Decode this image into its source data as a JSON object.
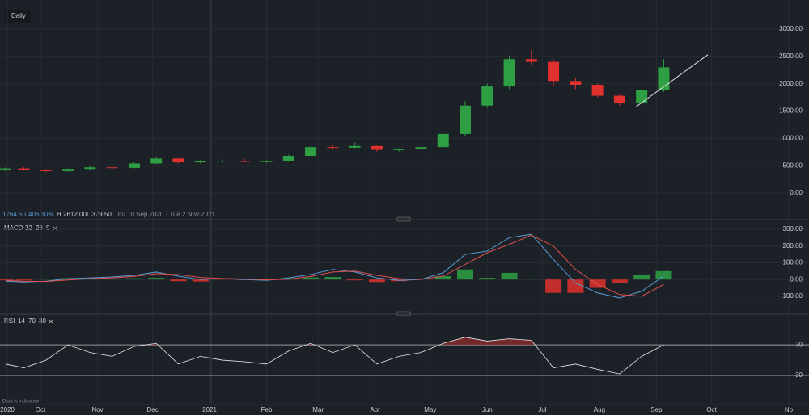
{
  "header": {
    "interval": "Daily"
  },
  "info": {
    "last": "1764.50",
    "change": "406.10%",
    "high": "H 2612.00",
    "low": "L 379.50",
    "range": "Thu 10 Sep 2020 - Tue 2 Nov 2021"
  },
  "disclaimer": "Data is indicative",
  "chart_data": [
    {
      "type": "candlestick",
      "x": [
        2,
        12,
        24,
        36,
        48,
        60,
        72,
        84,
        96,
        108,
        120,
        132,
        144,
        156,
        168,
        180,
        192,
        204,
        216,
        228,
        240,
        252,
        264,
        276,
        288,
        300,
        312,
        324,
        336,
        348,
        360
      ],
      "open": [
        430,
        450,
        420,
        400,
        440,
        470,
        460,
        540,
        630,
        560,
        580,
        590,
        570,
        580,
        680,
        840,
        830,
        860,
        790,
        800,
        840,
        1080,
        1600,
        1950,
        2450,
        2400,
        2050,
        1980,
        1780,
        1640,
        1880
      ],
      "high": [
        470,
        470,
        440,
        450,
        490,
        500,
        560,
        650,
        640,
        600,
        610,
        620,
        600,
        700,
        860,
        880,
        920,
        870,
        820,
        860,
        1100,
        1680,
        2000,
        2520,
        2612,
        2450,
        2100,
        2000,
        1800,
        1900,
        2450
      ],
      "low": [
        400,
        410,
        380,
        390,
        430,
        440,
        450,
        530,
        540,
        540,
        550,
        560,
        550,
        570,
        670,
        800,
        820,
        760,
        760,
        780,
        830,
        1050,
        1560,
        1900,
        2350,
        1950,
        1900,
        1750,
        1600,
        1620,
        1850
      ],
      "close": [
        450,
        420,
        400,
        440,
        470,
        460,
        540,
        630,
        560,
        580,
        590,
        570,
        580,
        680,
        840,
        830,
        860,
        790,
        800,
        840,
        1080,
        1600,
        1950,
        2450,
        2400,
        2050,
        1980,
        1780,
        1640,
        1880,
        2300
      ],
      "up_color": "#2ea043",
      "down_color": "#e0312f",
      "trendline": {
        "x": [
          345,
          384
        ],
        "values": [
          1580,
          2530
        ],
        "color": "#d9dde3"
      },
      "xlim": [
        -1,
        439
      ],
      "xticks": [
        {
          "value": 3,
          "label": "2020"
        },
        {
          "value": 21,
          "label": "Oct"
        },
        {
          "value": 52,
          "label": "Nov"
        },
        {
          "value": 82,
          "label": "Dec"
        },
        {
          "value": 113,
          "label": "2021"
        },
        {
          "value": 144,
          "label": "Feb"
        },
        {
          "value": 172,
          "label": "Mar"
        },
        {
          "value": 203,
          "label": "Apr"
        },
        {
          "value": 233,
          "label": "May"
        },
        {
          "value": 264,
          "label": "Jun"
        },
        {
          "value": 294,
          "label": "Jul"
        },
        {
          "value": 325,
          "label": "Aug"
        },
        {
          "value": 356,
          "label": "Sep"
        },
        {
          "value": 386,
          "label": "Oct"
        },
        {
          "value": 428,
          "label": "No"
        }
      ],
      "ylim": [
        -458,
        3532
      ],
      "yticks": [
        {
          "value": 0,
          "label": "0.00"
        },
        {
          "value": 500,
          "label": "500.00"
        },
        {
          "value": 1000,
          "label": "1000.00"
        },
        {
          "value": 1500,
          "label": "1500.00"
        },
        {
          "value": 2000,
          "label": "2000.00"
        },
        {
          "value": 2500,
          "label": "2500.00"
        },
        {
          "value": 3000,
          "label": "3000.00"
        }
      ]
    },
    {
      "type": "macd",
      "name": "MACD",
      "params": [
        "12",
        "26",
        "9"
      ],
      "x": [
        2,
        12,
        24,
        36,
        48,
        60,
        72,
        84,
        96,
        108,
        120,
        132,
        144,
        156,
        168,
        180,
        192,
        204,
        216,
        228,
        240,
        252,
        264,
        276,
        288,
        300,
        312,
        324,
        336,
        348,
        360
      ],
      "macd": [
        -10,
        -15,
        -10,
        5,
        10,
        15,
        25,
        45,
        20,
        0,
        5,
        0,
        -5,
        10,
        30,
        60,
        45,
        10,
        -5,
        0,
        40,
        150,
        170,
        250,
        270,
        120,
        -20,
        -80,
        -110,
        -70,
        20
      ],
      "signal": [
        -5,
        -10,
        -12,
        -3,
        5,
        10,
        18,
        35,
        30,
        12,
        6,
        3,
        -2,
        2,
        18,
        45,
        50,
        25,
        5,
        0,
        20,
        90,
        160,
        210,
        265,
        200,
        60,
        -30,
        -90,
        -100,
        -30
      ],
      "histogram": [
        -5,
        -5,
        2,
        8,
        5,
        5,
        7,
        10,
        -10,
        -12,
        -1,
        -3,
        -3,
        8,
        12,
        15,
        -5,
        -15,
        -10,
        0,
        20,
        60,
        10,
        40,
        5,
        -80,
        -80,
        -50,
        -20,
        30,
        50
      ],
      "macd_color": "#5b9bd5",
      "signal_color": "#e05050",
      "up_color": "#2ea043",
      "down_color": "#e0312f",
      "ylim": [
        -202,
        329
      ],
      "yticks": [
        {
          "value": -100,
          "label": "-100.00"
        },
        {
          "value": 0,
          "label": "0.00"
        },
        {
          "value": 100,
          "label": "100.00"
        },
        {
          "value": 200,
          "label": "200.00"
        },
        {
          "value": 300,
          "label": "300.00"
        }
      ]
    },
    {
      "type": "rsi",
      "name": "RSI",
      "params": [
        "14",
        "70",
        "30"
      ],
      "x": [
        2,
        12,
        24,
        36,
        48,
        60,
        72,
        84,
        96,
        108,
        120,
        132,
        144,
        156,
        168,
        180,
        192,
        204,
        216,
        228,
        240,
        252,
        264,
        276,
        288,
        300,
        312,
        324,
        336,
        348,
        360
      ],
      "values": [
        45,
        40,
        50,
        70,
        60,
        55,
        68,
        72,
        45,
        55,
        50,
        48,
        45,
        62,
        72,
        60,
        70,
        45,
        55,
        60,
        72,
        80,
        75,
        78,
        76,
        40,
        45,
        38,
        32,
        55,
        70
      ],
      "color": "#e6e8eb",
      "band_color": "#8a2a2a",
      "ylim": [
        -7,
        104
      ],
      "yticks": [
        30,
        70
      ]
    }
  ]
}
